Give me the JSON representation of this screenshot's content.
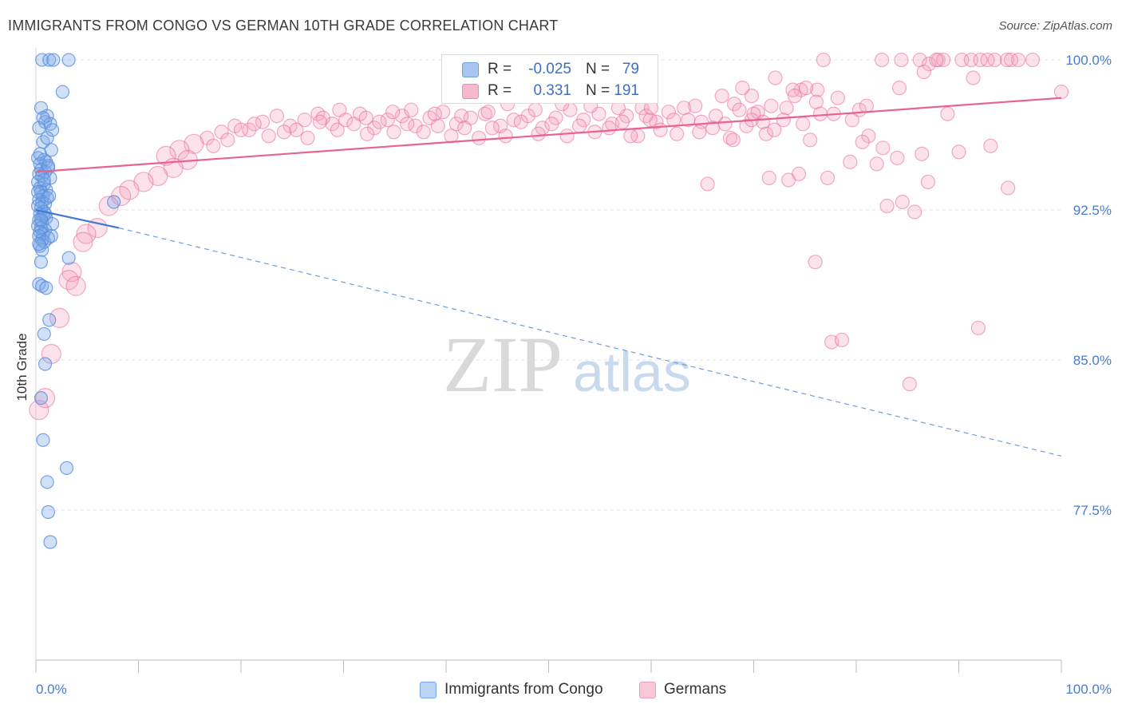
{
  "header": {
    "title": "IMMIGRANTS FROM CONGO VS GERMAN 10TH GRADE CORRELATION CHART",
    "source": "Source: ZipAtlas.com"
  },
  "watermark": {
    "zip": "ZIP",
    "atlas": "atlas"
  },
  "legend": {
    "r_label": "R =",
    "n_label": "N =",
    "rows": [
      {
        "r": "-0.025",
        "n": "79",
        "color": "#a9c6f2",
        "border": "#6f9fe0"
      },
      {
        "r": "0.331",
        "n": "191",
        "color": "#f7b8cd",
        "border": "#ec8eae"
      }
    ]
  },
  "bottom_legend": [
    {
      "label": "Immigrants from Congo",
      "color": "#bcd4f5",
      "border": "#7aa6e3"
    },
    {
      "label": "Germans",
      "color": "#f9c8d8",
      "border": "#ee9bb7"
    }
  ],
  "chart_data": {
    "type": "scatter",
    "title": "IMMIGRANTS FROM CONGO VS GERMAN 10TH GRADE CORRELATION CHART",
    "xlabel": "",
    "ylabel": "10th Grade",
    "xlim": [
      0,
      100
    ],
    "ylim": [
      70.0,
      100.6
    ],
    "x_tick_labels": [
      "0.0%",
      "100.0%"
    ],
    "y_ticks": [
      77.5,
      85.0,
      92.5,
      100.0
    ],
    "y_tick_labels": [
      "77.5%",
      "85.0%",
      "92.5%",
      "100.0%"
    ],
    "grid": true,
    "legend_position": "top-center",
    "series": [
      {
        "name": "Immigrants from Congo",
        "color": "#5b8fd9",
        "fill": "rgba(120,165,232,0.35)",
        "trend": {
          "x1": 0,
          "y1": 92.5,
          "x2": 8.1,
          "y2": 91.6,
          "dashed_to_x": 100,
          "dashed_to_y": 80.2
        },
        "points": [
          [
            0.6,
            100
          ],
          [
            1.3,
            100
          ],
          [
            1.7,
            100
          ],
          [
            3.2,
            100
          ],
          [
            2.6,
            98.4
          ],
          [
            0.5,
            97.6
          ],
          [
            1.1,
            97.2
          ],
          [
            0.9,
            96.9
          ],
          [
            1.4,
            96.8
          ],
          [
            0.3,
            96.6
          ],
          [
            1.6,
            96.5
          ],
          [
            0.7,
            95.9
          ],
          [
            1.5,
            95.5
          ],
          [
            0.2,
            95.1
          ],
          [
            0.8,
            95.0
          ],
          [
            1.0,
            94.9
          ],
          [
            0.4,
            94.8
          ],
          [
            1.2,
            94.6
          ],
          [
            0.5,
            94.5
          ],
          [
            0.9,
            94.4
          ],
          [
            0.3,
            94.3
          ],
          [
            0.6,
            94.2
          ],
          [
            1.4,
            94.1
          ],
          [
            0.2,
            93.9
          ],
          [
            0.8,
            93.8
          ],
          [
            0.4,
            93.6
          ],
          [
            1.0,
            93.5
          ],
          [
            0.5,
            93.4
          ],
          [
            0.7,
            93.2
          ],
          [
            1.1,
            93.1
          ],
          [
            0.3,
            93.0
          ],
          [
            0.6,
            92.9
          ],
          [
            0.9,
            92.8
          ],
          [
            0.2,
            92.7
          ],
          [
            0.5,
            92.6
          ],
          [
            0.8,
            92.4
          ],
          [
            0.4,
            92.3
          ],
          [
            0.7,
            92.2
          ],
          [
            1.0,
            92.1
          ],
          [
            0.3,
            92.0
          ],
          [
            0.6,
            91.9
          ],
          [
            1.6,
            91.8
          ],
          [
            0.2,
            91.7
          ],
          [
            0.5,
            91.6
          ],
          [
            0.9,
            91.5
          ],
          [
            0.4,
            91.4
          ],
          [
            0.7,
            91.3
          ],
          [
            0.3,
            91.2
          ],
          [
            1.2,
            91.1
          ],
          [
            0.6,
            91.0
          ],
          [
            0.8,
            90.9
          ],
          [
            0.4,
            90.7
          ],
          [
            0.6,
            90.5
          ],
          [
            3.2,
            90.1
          ],
          [
            0.5,
            89.9
          ],
          [
            0.3,
            88.8
          ],
          [
            0.6,
            88.7
          ],
          [
            1.0,
            88.6
          ],
          [
            1.3,
            87.0
          ],
          [
            0.8,
            86.3
          ],
          [
            0.9,
            84.8
          ],
          [
            0.5,
            83.1
          ],
          [
            0.7,
            81.0
          ],
          [
            3.0,
            79.6
          ],
          [
            1.1,
            78.9
          ],
          [
            1.2,
            77.4
          ],
          [
            1.4,
            75.9
          ],
          [
            7.6,
            92.9
          ],
          [
            0.9,
            92.3
          ],
          [
            1.3,
            93.2
          ],
          [
            0.4,
            95.3
          ],
          [
            0.7,
            97.1
          ],
          [
            1.1,
            96.1
          ],
          [
            0.2,
            93.4
          ],
          [
            0.5,
            92.0
          ],
          [
            1.5,
            91.2
          ],
          [
            0.3,
            90.8
          ],
          [
            0.8,
            94.0
          ],
          [
            1.2,
            94.7
          ]
        ]
      },
      {
        "name": "Germans",
        "color": "#e86c95",
        "fill": "rgba(244,160,188,0.30)",
        "trend": {
          "x1": 0,
          "y1": 94.4,
          "x2": 100,
          "y2": 98.1
        },
        "points": [
          [
            76.8,
            100
          ],
          [
            82.5,
            100
          ],
          [
            84.4,
            100
          ],
          [
            86.2,
            100
          ],
          [
            88.0,
            100
          ],
          [
            88.5,
            100
          ],
          [
            90.3,
            100
          ],
          [
            91.2,
            100
          ],
          [
            92.1,
            100
          ],
          [
            93.5,
            100
          ],
          [
            94.7,
            100
          ],
          [
            95.8,
            100
          ],
          [
            97.2,
            100
          ],
          [
            87.1,
            99.8
          ],
          [
            87.8,
            100
          ],
          [
            92.8,
            100
          ],
          [
            95.1,
            100
          ],
          [
            86.6,
            99.4
          ],
          [
            91.4,
            99.1
          ],
          [
            84.2,
            98.6
          ],
          [
            100,
            98.4
          ],
          [
            76.2,
            98.5
          ],
          [
            74.6,
            98.5
          ],
          [
            73.8,
            98.5
          ],
          [
            69.8,
            98.2
          ],
          [
            75.1,
            98.6
          ],
          [
            72.1,
            99.1
          ],
          [
            68.9,
            98.6
          ],
          [
            76.1,
            97.9
          ],
          [
            78.2,
            98.1
          ],
          [
            80.3,
            97.5
          ],
          [
            79.6,
            97.0
          ],
          [
            81.2,
            96.2
          ],
          [
            82.6,
            95.6
          ],
          [
            84.0,
            95.1
          ],
          [
            82.0,
            94.8
          ],
          [
            75.5,
            96.0
          ],
          [
            71.2,
            96.3
          ],
          [
            69.3,
            96.7
          ],
          [
            67.2,
            96.8
          ],
          [
            66.3,
            97.2
          ],
          [
            64.9,
            96.9
          ],
          [
            63.2,
            97.6
          ],
          [
            61.7,
            97.4
          ],
          [
            60.5,
            96.9
          ],
          [
            59.1,
            97.6
          ],
          [
            57.6,
            97.2
          ],
          [
            56.2,
            96.8
          ],
          [
            54.9,
            97.3
          ],
          [
            53.4,
            97.0
          ],
          [
            52.1,
            97.5
          ],
          [
            50.7,
            97.1
          ],
          [
            49.4,
            96.6
          ],
          [
            48.0,
            97.2
          ],
          [
            46.6,
            97.0
          ],
          [
            45.3,
            96.7
          ],
          [
            43.8,
            97.3
          ],
          [
            42.4,
            97.1
          ],
          [
            41.0,
            96.8
          ],
          [
            39.7,
            97.4
          ],
          [
            38.4,
            97.1
          ],
          [
            37.0,
            96.7
          ],
          [
            35.7,
            97.2
          ],
          [
            34.3,
            97.0
          ],
          [
            33.0,
            96.6
          ],
          [
            31.6,
            97.3
          ],
          [
            30.2,
            97.0
          ],
          [
            28.9,
            96.8
          ],
          [
            27.5,
            97.3
          ],
          [
            26.2,
            97.0
          ],
          [
            24.8,
            96.7
          ],
          [
            23.5,
            97.2
          ],
          [
            22.1,
            96.9
          ],
          [
            20.8,
            96.5
          ],
          [
            19.4,
            96.7
          ],
          [
            18.1,
            96.4
          ],
          [
            16.7,
            96.1
          ],
          [
            15.4,
            95.8
          ],
          [
            14.0,
            95.5
          ],
          [
            12.7,
            95.2
          ],
          [
            25.4,
            96.5
          ],
          [
            28.0,
            97.1
          ],
          [
            29.6,
            97.5
          ],
          [
            32.2,
            97.1
          ],
          [
            34.8,
            97.4
          ],
          [
            36.6,
            97.5
          ],
          [
            38.9,
            97.3
          ],
          [
            41.5,
            97.2
          ],
          [
            44.1,
            97.4
          ],
          [
            46.0,
            97.8
          ],
          [
            48.7,
            97.5
          ],
          [
            51.3,
            97.8
          ],
          [
            54.1,
            97.7
          ],
          [
            56.8,
            97.6
          ],
          [
            59.5,
            97.2
          ],
          [
            62.2,
            97.0
          ],
          [
            64.3,
            97.7
          ],
          [
            66.9,
            98.2
          ],
          [
            68.1,
            97.8
          ],
          [
            70.4,
            97.4
          ],
          [
            72.9,
            97.0
          ],
          [
            74.0,
            98.2
          ],
          [
            77.8,
            97.3
          ],
          [
            81.0,
            97.7
          ],
          [
            76.5,
            97.3
          ],
          [
            73.2,
            97.6
          ],
          [
            71.7,
            97.7
          ],
          [
            70.9,
            96.9
          ],
          [
            69.8,
            97.0
          ],
          [
            68.6,
            97.5
          ],
          [
            67.7,
            96.1
          ],
          [
            66.0,
            96.6
          ],
          [
            64.7,
            96.4
          ],
          [
            63.6,
            97.0
          ],
          [
            62.5,
            96.3
          ],
          [
            60.9,
            96.5
          ],
          [
            59.9,
            97.0
          ],
          [
            58.7,
            96.2
          ],
          [
            57.2,
            96.9
          ],
          [
            55.9,
            96.6
          ],
          [
            54.5,
            96.4
          ],
          [
            53.0,
            96.7
          ],
          [
            51.8,
            96.2
          ],
          [
            50.3,
            96.8
          ],
          [
            49.0,
            96.3
          ],
          [
            47.3,
            96.9
          ],
          [
            45.8,
            96.2
          ],
          [
            44.5,
            96.6
          ],
          [
            43.2,
            96.1
          ],
          [
            41.8,
            96.6
          ],
          [
            40.5,
            96.2
          ],
          [
            39.2,
            96.7
          ],
          [
            37.8,
            96.4
          ],
          [
            36.2,
            96.8
          ],
          [
            34.9,
            96.4
          ],
          [
            33.5,
            96.9
          ],
          [
            32.3,
            96.3
          ],
          [
            31.0,
            96.8
          ],
          [
            29.4,
            96.5
          ],
          [
            27.7,
            96.9
          ],
          [
            26.5,
            96.1
          ],
          [
            24.2,
            96.4
          ],
          [
            22.7,
            96.2
          ],
          [
            21.3,
            96.8
          ],
          [
            20.0,
            96.5
          ],
          [
            18.7,
            96.0
          ],
          [
            17.3,
            95.7
          ],
          [
            14.8,
            95.0
          ],
          [
            13.4,
            94.6
          ],
          [
            11.9,
            94.2
          ],
          [
            10.5,
            93.9
          ],
          [
            9.1,
            93.5
          ],
          [
            8.3,
            93.2
          ],
          [
            7.1,
            92.7
          ],
          [
            6.0,
            91.6
          ],
          [
            4.9,
            91.3
          ],
          [
            4.6,
            90.9
          ],
          [
            3.5,
            89.4
          ],
          [
            3.2,
            89.0
          ],
          [
            3.9,
            88.7
          ],
          [
            2.3,
            87.1
          ],
          [
            1.5,
            85.3
          ],
          [
            0.9,
            83.1
          ],
          [
            0.3,
            82.5
          ],
          [
            65.5,
            93.8
          ],
          [
            73.4,
            94.0
          ],
          [
            71.5,
            94.1
          ],
          [
            74.4,
            94.3
          ],
          [
            77.2,
            94.1
          ],
          [
            87.0,
            93.9
          ],
          [
            94.8,
            93.6
          ],
          [
            83.0,
            92.7
          ],
          [
            85.7,
            92.4
          ],
          [
            76.0,
            89.9
          ],
          [
            77.6,
            85.9
          ],
          [
            78.6,
            86.0
          ],
          [
            91.9,
            86.6
          ],
          [
            85.2,
            83.8
          ],
          [
            80.6,
            95.9
          ],
          [
            86.4,
            95.3
          ],
          [
            79.4,
            94.9
          ],
          [
            84.5,
            92.9
          ],
          [
            90.0,
            95.4
          ],
          [
            93.1,
            95.7
          ],
          [
            88.9,
            97.3
          ],
          [
            60.0,
            97.6
          ],
          [
            58.0,
            96.2
          ],
          [
            68.0,
            96.0
          ],
          [
            70.0,
            97.3
          ],
          [
            72.0,
            96.5
          ],
          [
            74.8,
            96.8
          ]
        ]
      }
    ]
  }
}
